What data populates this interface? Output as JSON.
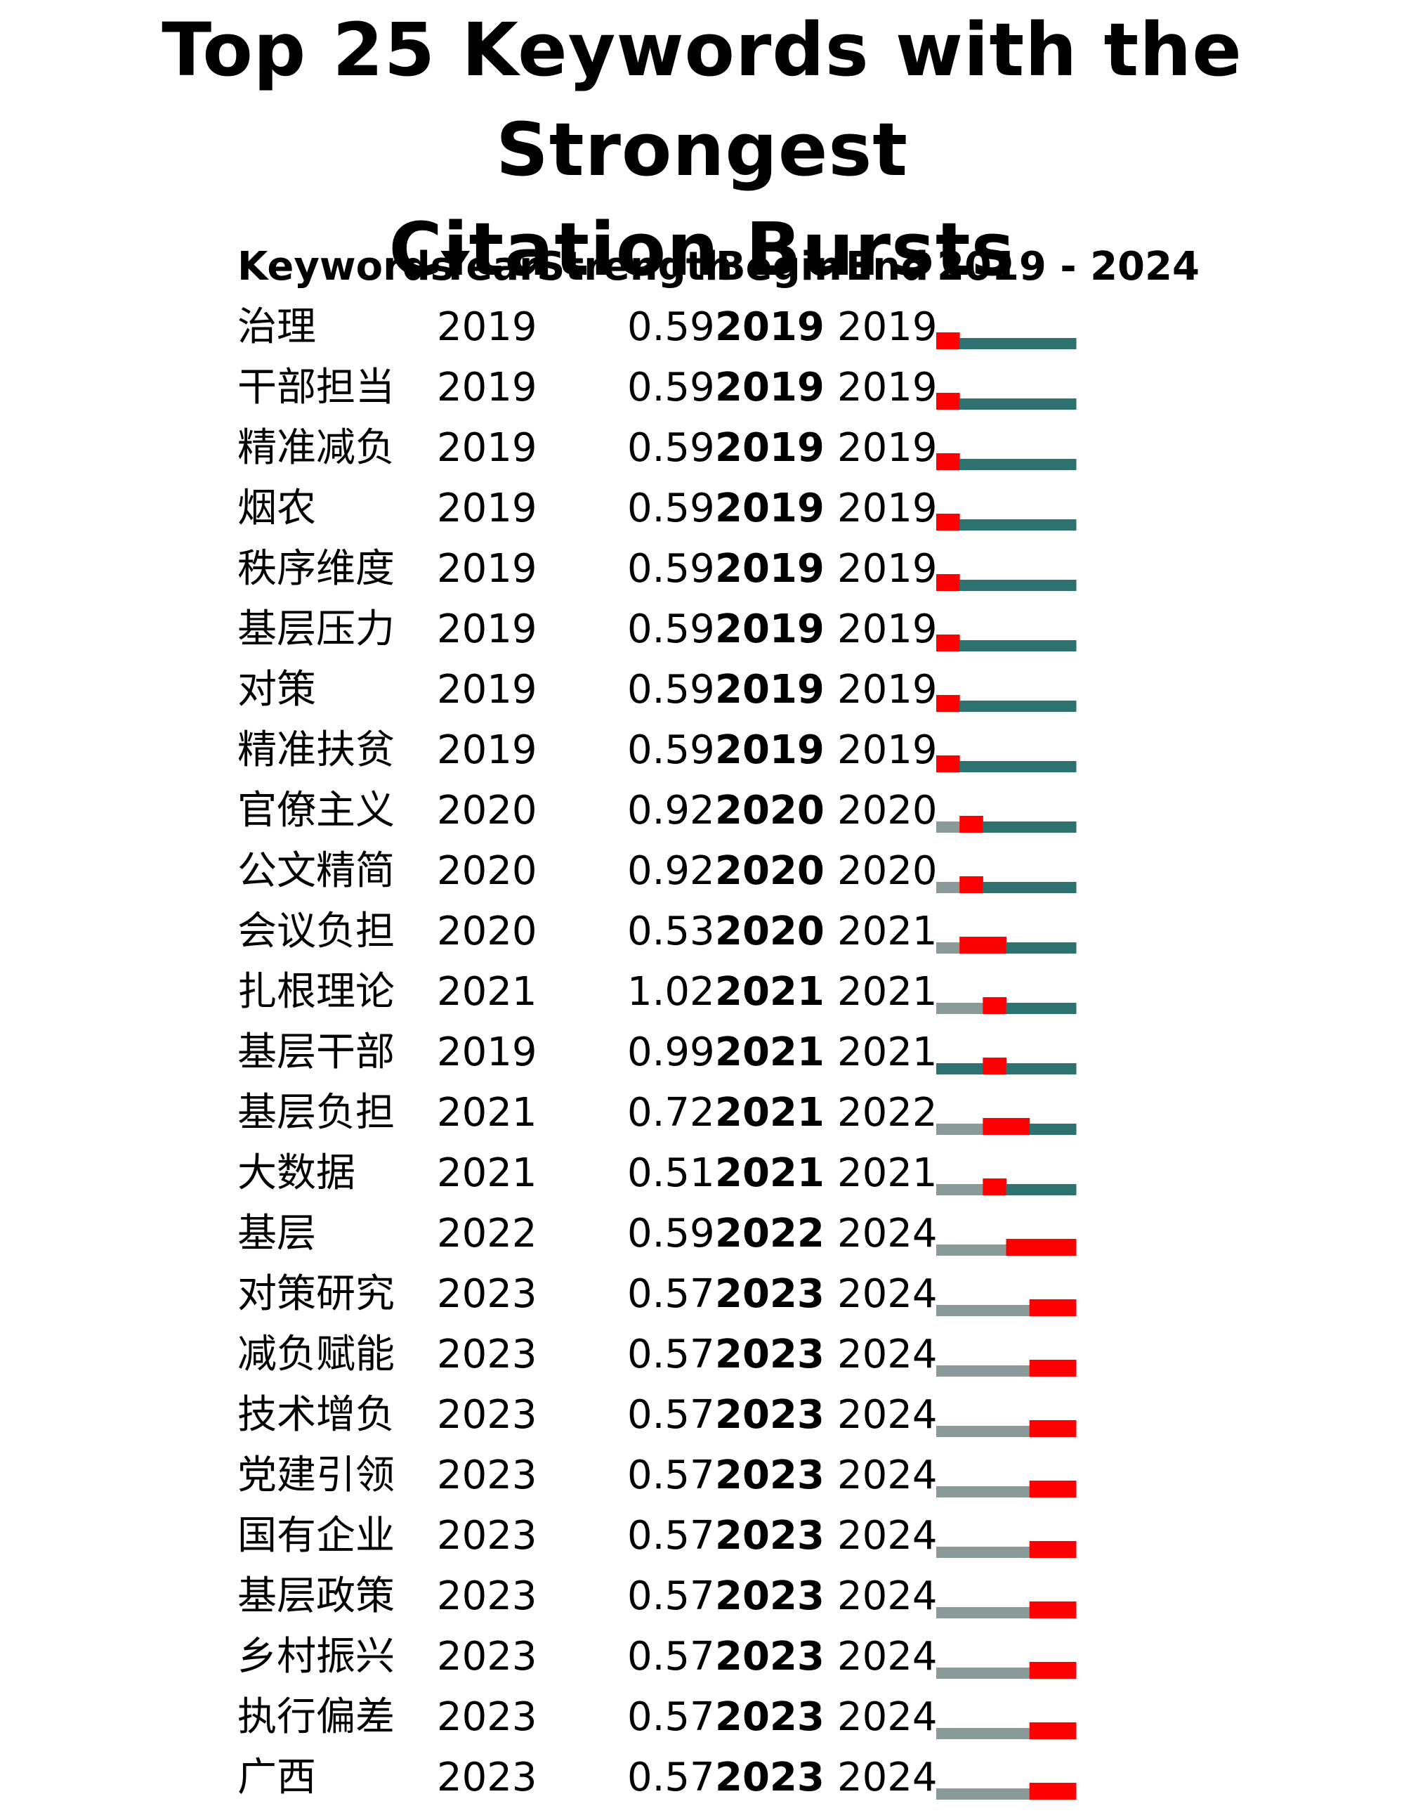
{
  "chart_data": {
    "type": "burst-timeline",
    "title": "Top 25 Keywords with the Strongest Citation Bursts",
    "title_lines": [
      "Top 25 Keywords with the Strongest",
      "Citation Bursts"
    ],
    "columns": [
      "Keywords",
      "Year",
      "Strength",
      "Begin",
      "End",
      "2019 - 2024"
    ],
    "timeline": {
      "start": 2019,
      "end": 2024
    },
    "colors": {
      "burst": "#ff0000",
      "active": "#2e7270",
      "inactive": "#8a9a98"
    },
    "rows": [
      {
        "keyword": "治理",
        "year": "2019",
        "strength": "0.59",
        "begin": "2019",
        "end": "2019"
      },
      {
        "keyword": "干部担当",
        "year": "2019",
        "strength": "0.59",
        "begin": "2019",
        "end": "2019"
      },
      {
        "keyword": "精准减负",
        "year": "2019",
        "strength": "0.59",
        "begin": "2019",
        "end": "2019"
      },
      {
        "keyword": "烟农",
        "year": "2019",
        "strength": "0.59",
        "begin": "2019",
        "end": "2019"
      },
      {
        "keyword": "秩序维度",
        "year": "2019",
        "strength": "0.59",
        "begin": "2019",
        "end": "2019"
      },
      {
        "keyword": "基层压力",
        "year": "2019",
        "strength": "0.59",
        "begin": "2019",
        "end": "2019"
      },
      {
        "keyword": "对策",
        "year": "2019",
        "strength": "0.59",
        "begin": "2019",
        "end": "2019"
      },
      {
        "keyword": "精准扶贫",
        "year": "2019",
        "strength": "0.59",
        "begin": "2019",
        "end": "2019"
      },
      {
        "keyword": "官僚主义",
        "year": "2020",
        "strength": "0.92",
        "begin": "2020",
        "end": "2020"
      },
      {
        "keyword": "公文精简",
        "year": "2020",
        "strength": "0.92",
        "begin": "2020",
        "end": "2020"
      },
      {
        "keyword": "会议负担",
        "year": "2020",
        "strength": "0.53",
        "begin": "2020",
        "end": "2021"
      },
      {
        "keyword": "扎根理论",
        "year": "2021",
        "strength": "1.02",
        "begin": "2021",
        "end": "2021"
      },
      {
        "keyword": "基层干部",
        "year": "2019",
        "strength": "0.99",
        "begin": "2021",
        "end": "2021"
      },
      {
        "keyword": "基层负担",
        "year": "2021",
        "strength": "0.72",
        "begin": "2021",
        "end": "2022"
      },
      {
        "keyword": "大数据",
        "year": "2021",
        "strength": "0.51",
        "begin": "2021",
        "end": "2021"
      },
      {
        "keyword": "基层",
        "year": "2022",
        "strength": "0.59",
        "begin": "2022",
        "end": "2024"
      },
      {
        "keyword": "对策研究",
        "year": "2023",
        "strength": "0.57",
        "begin": "2023",
        "end": "2024"
      },
      {
        "keyword": "减负赋能",
        "year": "2023",
        "strength": "0.57",
        "begin": "2023",
        "end": "2024"
      },
      {
        "keyword": "技术增负",
        "year": "2023",
        "strength": "0.57",
        "begin": "2023",
        "end": "2024"
      },
      {
        "keyword": "党建引领",
        "year": "2023",
        "strength": "0.57",
        "begin": "2023",
        "end": "2024"
      },
      {
        "keyword": "国有企业",
        "year": "2023",
        "strength": "0.57",
        "begin": "2023",
        "end": "2024"
      },
      {
        "keyword": "基层政策",
        "year": "2023",
        "strength": "0.57",
        "begin": "2023",
        "end": "2024"
      },
      {
        "keyword": "乡村振兴",
        "year": "2023",
        "strength": "0.57",
        "begin": "2023",
        "end": "2024"
      },
      {
        "keyword": "执行偏差",
        "year": "2023",
        "strength": "0.57",
        "begin": "2023",
        "end": "2024"
      },
      {
        "keyword": "广西",
        "year": "2023",
        "strength": "0.57",
        "begin": "2023",
        "end": "2024"
      }
    ]
  }
}
